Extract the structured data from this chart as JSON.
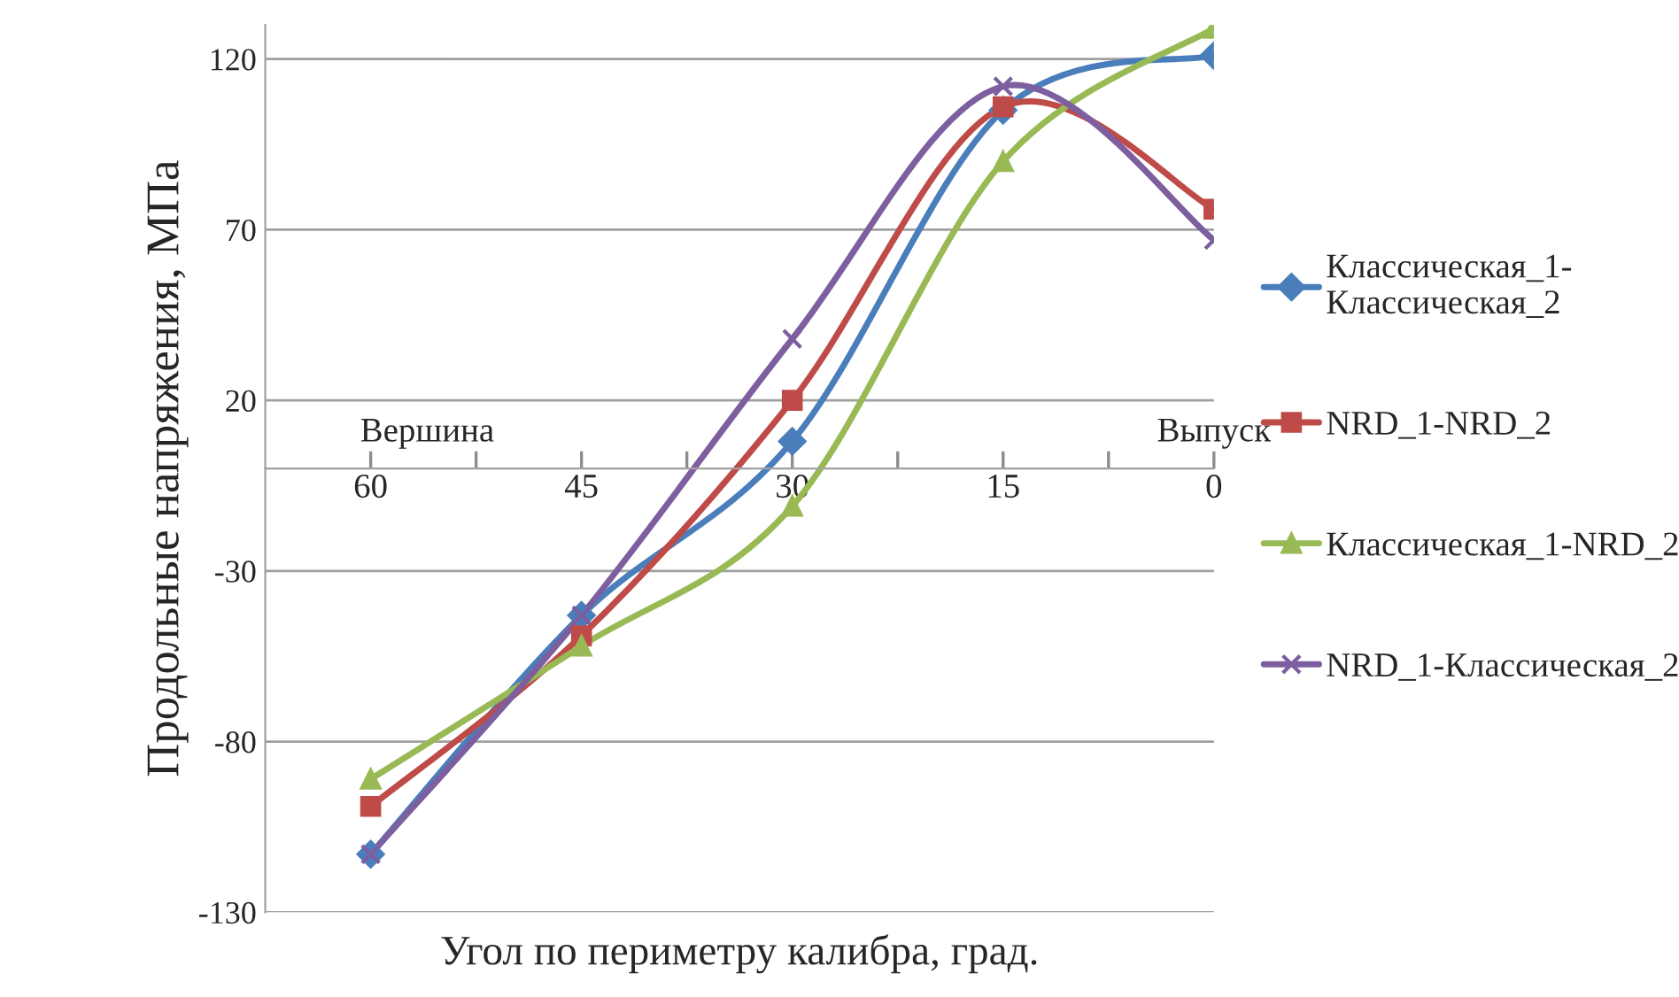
{
  "chart_data": {
    "type": "line",
    "x": [
      60,
      45,
      30,
      15,
      0
    ],
    "series": [
      {
        "name": "Классическая_1-Классическая_2",
        "color": "#4a7ebb",
        "marker": "diamond",
        "values": [
          -113,
          -43,
          8,
          105,
          121
        ]
      },
      {
        "name": "NRD_1-NRD_2",
        "color": "#be4b48",
        "marker": "square",
        "values": [
          -99,
          -49,
          20,
          106,
          76
        ]
      },
      {
        "name": "Классическая_1-NRD_2",
        "color": "#98b954",
        "marker": "triangle",
        "values": [
          -91,
          -52,
          -11,
          90,
          129
        ]
      },
      {
        "name": "NRD_1-Классическая_2",
        "color": "#7d5fa0",
        "marker": "cross",
        "values": [
          -113,
          -43,
          38,
          112,
          67
        ]
      }
    ],
    "xlim": [
      67.5,
      0
    ],
    "xticks": [
      60,
      {
        "value": 52.5,
        "label": null
      },
      45,
      {
        "value": 37.5,
        "label": null
      },
      30,
      {
        "value": 22.5,
        "label": null
      },
      15,
      {
        "value": 7.5,
        "label": null
      },
      0
    ],
    "ylim": [
      -130,
      130
    ],
    "yticks": [
      -130,
      -80,
      -30,
      20,
      70,
      120
    ],
    "xlabel": "Угол по периметру калибра, град.",
    "ylabel": "Продольные напряжения, МПа",
    "annotations": [
      "Вершина",
      "Выпуск"
    ],
    "grid": "y",
    "legend": "right",
    "line_style": "solid"
  }
}
